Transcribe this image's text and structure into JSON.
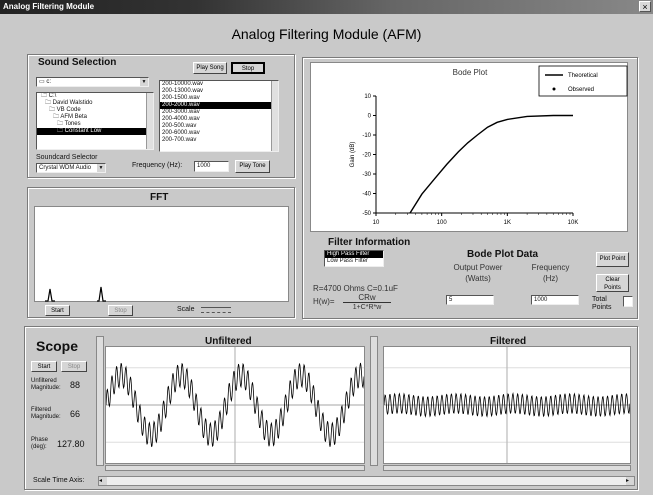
{
  "window": {
    "title": "Analog Filtering Module",
    "close_symbol": "×"
  },
  "main_title": "Analog Filtering Module (AFM)",
  "sound": {
    "title": "Sound Selection",
    "drive_value": "c:",
    "play_song": "Play Song",
    "stop": "Stop",
    "folders": [
      "C:\\",
      "David Walstido",
      "VB Code",
      "AFM Beta",
      "Tones",
      "Constant Low"
    ],
    "files": [
      "200-10000.wav",
      "200-13000.wav",
      "200-1500.wav",
      "200-2000.wav",
      "200-3000.wav",
      "200-4000.wav",
      "200-500.wav",
      "200-6000.wav",
      "200-700.wav"
    ],
    "selected_file_index": 3,
    "soundcard_label": "Soundcard Selector",
    "soundcard_value": "Crystal WDM Audio",
    "frequency_label": "Frequency (Hz):",
    "frequency_value": "1000",
    "play_tone": "Play Tone"
  },
  "fft": {
    "title": "FFT",
    "start": "Start",
    "stop": "Stop",
    "scale_label": "Scale"
  },
  "bode": {
    "chart_data": {
      "type": "line",
      "title": "Bode Plot",
      "ylabel": "Gain (dB)",
      "xlabel": "",
      "x_scale": "log",
      "xlim": [
        10,
        10000
      ],
      "ylim": [
        -50,
        10
      ],
      "x_ticks": [
        "10",
        "100",
        "1K",
        "10K"
      ],
      "y_ticks": [
        "10",
        "0",
        "-10",
        "-20",
        "-30",
        "-40",
        "-50"
      ],
      "legend": [
        "Theoretical",
        "Observed"
      ],
      "legend_position": "top-right",
      "series": [
        {
          "name": "Theoretical",
          "x": [
            33,
            50,
            80,
            120,
            180,
            250,
            350,
            500,
            700,
            1000,
            2000,
            5000,
            10000
          ],
          "y": [
            -50,
            -40.3,
            -32,
            -25,
            -18.6,
            -14,
            -10,
            -6,
            -3.5,
            -2,
            -0.5,
            0,
            0
          ]
        }
      ]
    }
  },
  "filter": {
    "title": "Filter Information",
    "options": [
      "High Pass Filter",
      "Low Pass Filter"
    ],
    "selected_index": 0,
    "params": "R=4700 Ohms   C=0.1uF",
    "hw_label": "H(w)=",
    "hw_num": "CRw",
    "hw_den": "1+C*R*w"
  },
  "bodedata": {
    "title": "Bode Plot Data",
    "output_power": "Output Power",
    "watts": "(Watts)",
    "frequency": "Frequency",
    "hz": "(Hz)",
    "power_value": "5",
    "freq_value": "1000",
    "plot_point": "Plot Point",
    "clear_points": "Clear Points",
    "total_points": "Total Points"
  },
  "scope": {
    "title": "Scope",
    "start": "Start",
    "stop": "Stop",
    "unfiltered_mag_label": "Unfiltered Magnitude:",
    "unfiltered_mag_value": "88",
    "filtered_mag_label": "Filtered Magnitude:",
    "filtered_mag_value": "66",
    "phase_label": "Phase (deg):",
    "phase_value": "127.80",
    "unfiltered_title": "Unfiltered",
    "filtered_title": "Filtered",
    "scale_time_axis": "Scale Time Axis:"
  }
}
